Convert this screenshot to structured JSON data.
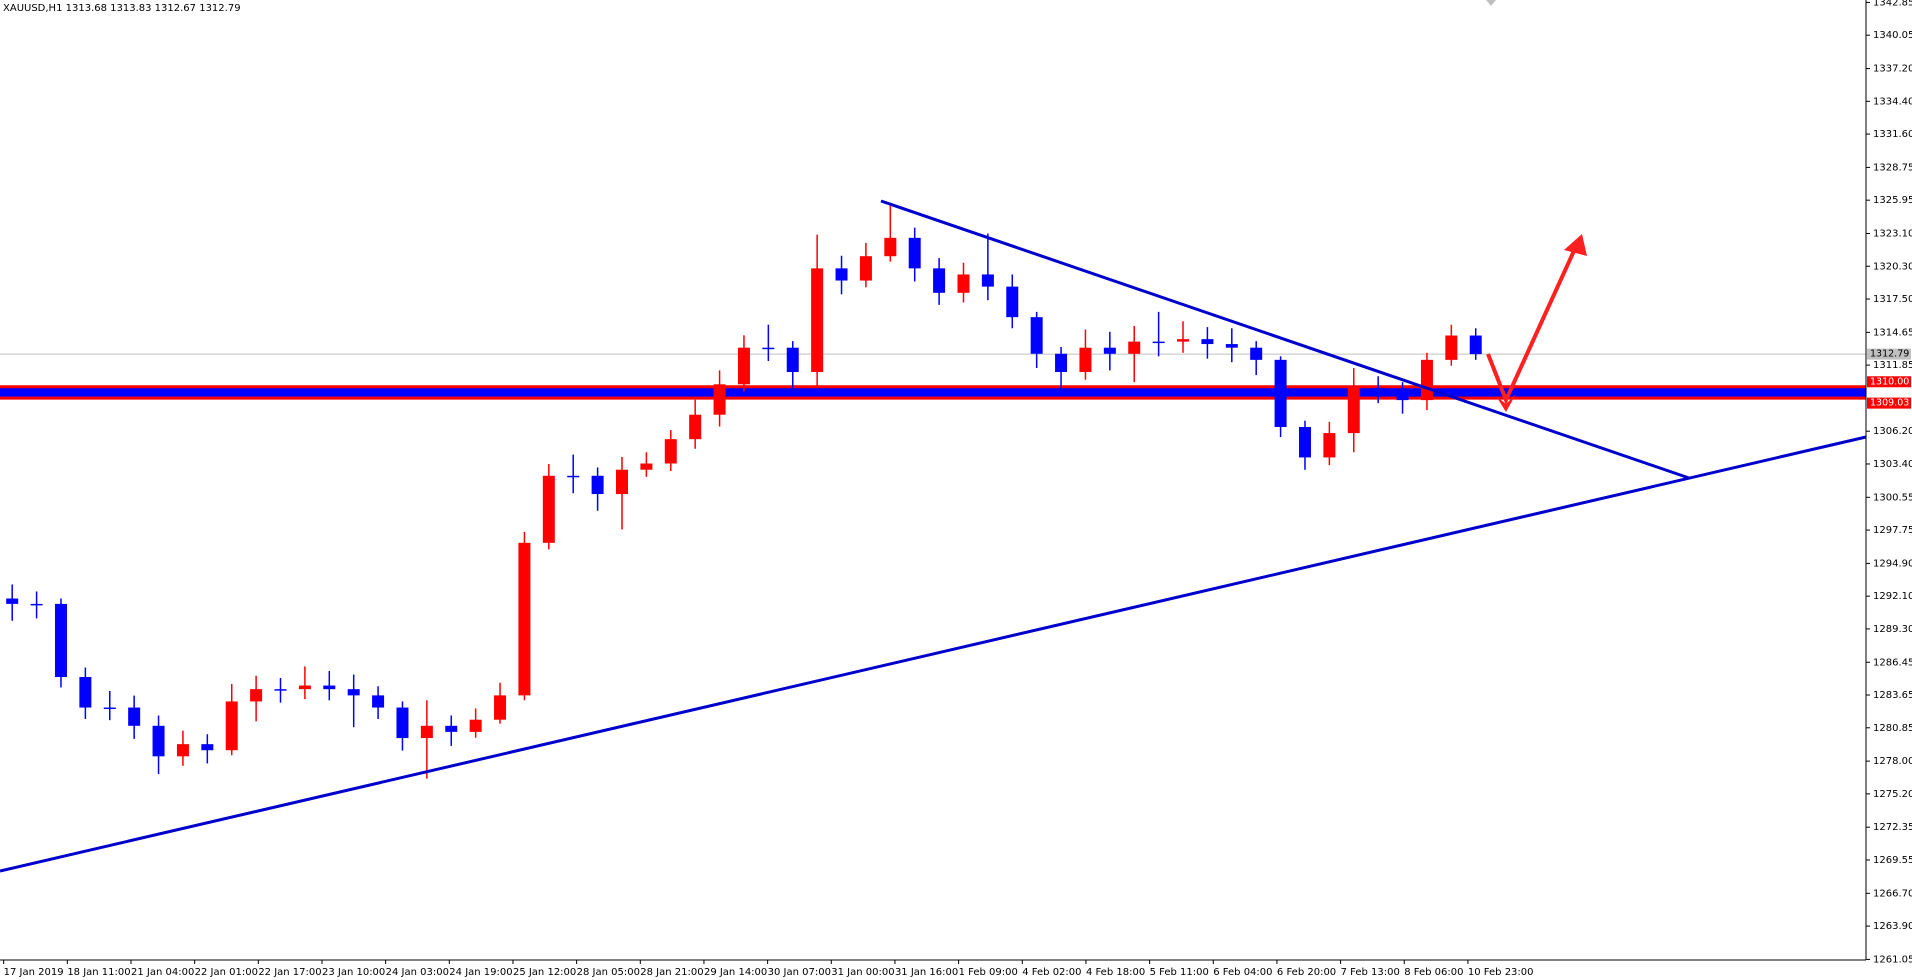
{
  "chart_data": {
    "type": "candlestick",
    "title": "XAUUSD,H1  1313.68 1313.83 1312.67 1312.79",
    "up_color": "#ff0000",
    "down_color": "#0000ff",
    "ylim": [
      1261.0,
      1343.06
    ],
    "yticks": [
      1342.85,
      1340.05,
      {
        "value": 1337.2,
        "label": "1337.20"
      },
      {
        "value": 1334.4,
        "label": "1334.40"
      },
      {
        "value": 1331.6,
        "label": "1331.60"
      },
      1328.75,
      1325.95,
      {
        "value": 1323.1,
        "label": "1323.10"
      },
      {
        "value": 1320.3,
        "label": "1320.30"
      },
      {
        "value": 1317.5,
        "label": "1317.50"
      },
      1314.65,
      1311.85,
      {
        "value": 1306.2,
        "label": "1306.20"
      },
      {
        "value": 1303.4,
        "label": "1303.40"
      },
      1300.55,
      1297.75,
      {
        "value": 1294.9,
        "label": "1294.90"
      },
      {
        "value": 1292.1,
        "label": "1292.10"
      },
      {
        "value": 1289.3,
        "label": "1289.30"
      },
      1286.45,
      1283.65,
      1280.85,
      {
        "value": 1278.0,
        "label": "1278.00"
      },
      {
        "value": 1275.2,
        "label": "1275.20"
      },
      1272.35,
      1269.55,
      {
        "value": 1266.7,
        "label": "1266.70"
      },
      {
        "value": 1263.9,
        "label": "1263.90"
      },
      1261.05
    ],
    "xlabels": [
      "17 Jan 2019",
      "18 Jan 11:00",
      "21 Jan 04:00",
      "22 Jan 01:00",
      "22 Jan 17:00",
      "23 Jan 10:00",
      "24 Jan 03:00",
      "24 Jan 19:00",
      "25 Jan 12:00",
      "28 Jan 05:00",
      "28 Jan 21:00",
      "29 Jan 14:00",
      "30 Jan 07:00",
      "31 Jan 00:00",
      "31 Jan 16:00",
      "1 Feb 09:00",
      "4 Feb 02:00",
      "4 Feb 18:00",
      "5 Feb 11:00",
      "6 Feb 04:00",
      "6 Feb 20:00",
      "7 Feb 13:00",
      "8 Feb 06:00",
      "10 Feb 23:00"
    ],
    "open": [
      1291.9,
      1291.44,
      1291.44,
      1285.19,
      1282.58,
      1282.58,
      1281.02,
      1278.41,
      1279.45,
      1278.93,
      1283.1,
      1284.15,
      1284.15,
      1284.46,
      1284.15,
      1283.62,
      1282.58,
      1279.97,
      1281.02,
      1280.5,
      1281.54,
      1283.62,
      1296.66,
      1302.39,
      1302.39,
      1300.83,
      1302.91,
      1303.44,
      1305.52,
      1307.61,
      1310.21,
      1313.34,
      1313.34,
      1311.26,
      1320.12,
      1319.08,
      1321.16,
      1322.73,
      1320.12,
      1318.03,
      1319.6,
      1318.56,
      1315.95,
      1312.82,
      1311.26,
      1313.34,
      1312.82,
      1313.86,
      1313.86,
      1314.07,
      1313.65,
      1313.34,
      1312.3,
      1306.56,
      1303.96,
      1306.04,
      1309.9,
      1309.69,
      1308.86,
      1312.3,
      1314.38
    ],
    "high": [
      1293.1,
      1292.5,
      1291.9,
      1286.0,
      1284.0,
      1283.6,
      1281.9,
      1280.6,
      1280.3,
      1284.6,
      1285.3,
      1285.1,
      1286.1,
      1285.7,
      1285.4,
      1284.4,
      1283.1,
      1283.2,
      1281.9,
      1282.5,
      1284.7,
      1297.6,
      1303.4,
      1304.2,
      1303.1,
      1304.0,
      1304.4,
      1306.3,
      1308.9,
      1311.4,
      1314.4,
      1315.3,
      1313.9,
      1323.0,
      1321.2,
      1322.3,
      1325.6,
      1323.6,
      1321.0,
      1320.6,
      1323.1,
      1319.6,
      1316.4,
      1313.4,
      1314.9,
      1314.7,
      1315.2,
      1316.4,
      1315.6,
      1315.1,
      1315.0,
      1313.9,
      1312.6,
      1307.1,
      1307.0,
      1311.6,
      1310.9,
      1310.4,
      1312.9,
      1315.3,
      1315.0
    ],
    "low": [
      1290.0,
      1290.2,
      1284.3,
      1281.6,
      1281.5,
      1279.9,
      1276.9,
      1277.6,
      1277.8,
      1278.5,
      1281.4,
      1283.0,
      1283.3,
      1283.2,
      1280.9,
      1281.6,
      1278.9,
      1276.5,
      1279.3,
      1280.0,
      1281.2,
      1283.2,
      1296.1,
      1300.9,
      1299.4,
      1297.8,
      1302.3,
      1302.8,
      1304.7,
      1306.6,
      1309.6,
      1312.2,
      1309.9,
      1310.0,
      1317.9,
      1318.5,
      1320.7,
      1319.0,
      1317.0,
      1317.2,
      1317.4,
      1315.0,
      1311.6,
      1309.3,
      1310.6,
      1311.4,
      1310.4,
      1312.6,
      1312.9,
      1312.4,
      1312.1,
      1311.0,
      1305.7,
      1302.9,
      1303.3,
      1304.4,
      1308.6,
      1307.7,
      1308.0,
      1311.8,
      1312.3
    ],
    "close": [
      1291.44,
      1291.44,
      1285.19,
      1282.58,
      1282.58,
      1281.02,
      1278.41,
      1279.45,
      1278.93,
      1283.1,
      1284.15,
      1284.15,
      1284.46,
      1284.15,
      1283.62,
      1282.58,
      1279.97,
      1281.02,
      1280.5,
      1281.54,
      1283.62,
      1296.66,
      1302.39,
      1302.39,
      1300.83,
      1302.91,
      1303.44,
      1305.52,
      1307.61,
      1310.21,
      1313.34,
      1313.34,
      1311.26,
      1320.12,
      1319.08,
      1321.16,
      1322.73,
      1320.12,
      1318.03,
      1319.6,
      1318.56,
      1315.95,
      1312.82,
      1311.26,
      1313.34,
      1312.82,
      1313.86,
      1313.86,
      1314.07,
      1313.65,
      1313.34,
      1312.3,
      1306.56,
      1303.96,
      1306.04,
      1309.9,
      1309.69,
      1308.86,
      1312.3,
      1314.38,
      1312.79
    ],
    "price_labels": [
      {
        "value": 1312.79,
        "label": "1312.79",
        "color": "#c0c0c0"
      },
      {
        "value": 1310,
        "label": "1310.00",
        "color": "#ff0000"
      },
      {
        "value": 1309.03,
        "label": "1309.03",
        "color": "#ff0000"
      }
    ]
  }
}
